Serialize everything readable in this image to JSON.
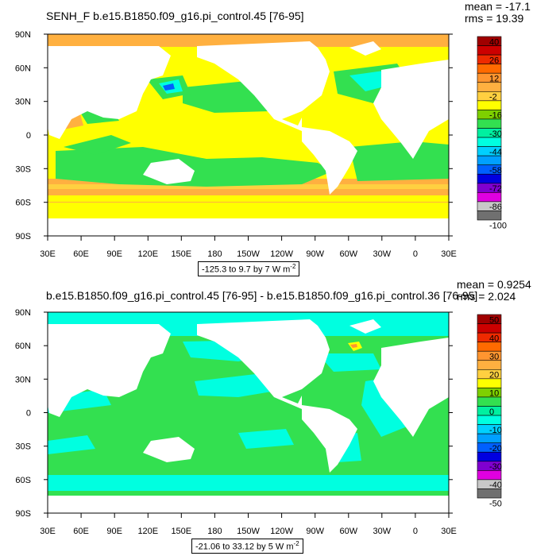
{
  "top": {
    "title": "SENH_F b.e15.B1850.f09_g16.pi_control.45 [76-95]",
    "mean": "mean = -17.1",
    "rms": "rms = 19.39",
    "range_text": "-125.3 to 9.7 by 7",
    "range_unit": "W m",
    "range_exp": "-2",
    "colorbar_labels": [
      "40",
      "26",
      "12",
      "-2",
      "-16",
      "-30",
      "-44",
      "-58",
      "-72",
      "-86",
      "-100"
    ]
  },
  "bottom": {
    "title": "b.e15.B1850.f09_g16.pi_control.45 [76-95] - b.e15.B1850.f09_g16.pi_control.36 [76-95]",
    "mean": "mean = 0.9254",
    "rms": "rms = 2.024",
    "range_text": "-21.06 to 33.12 by 5",
    "range_unit": "W m",
    "range_exp": "-2",
    "colorbar_labels": [
      "50",
      "40",
      "30",
      "20",
      "10",
      "0",
      "-10",
      "-20",
      "-30",
      "-40",
      "-50"
    ]
  },
  "axes": {
    "lat_labels": [
      "90N",
      "60N",
      "30N",
      "0",
      "30S",
      "60S",
      "90S"
    ],
    "lon_labels": [
      "30E",
      "60E",
      "90E",
      "120E",
      "150E",
      "180",
      "150W",
      "120W",
      "90W",
      "60W",
      "30W",
      "0",
      "30E"
    ]
  },
  "colors": {
    "top_colorbar": [
      "#a00000",
      "#cc0000",
      "#ee2a00",
      "#ff6a00",
      "#ff9530",
      "#ffb040",
      "#ffd040",
      "#ffff00",
      "#7ed000",
      "#33e050",
      "#00f0a0",
      "#00ffe0",
      "#00d0ff",
      "#00a0ff",
      "#0060ff",
      "#0000e0",
      "#8000d0",
      "#e000e0",
      "#c8c8c8",
      "#707070"
    ],
    "bottom_colorbar": [
      "#a00000",
      "#cc0000",
      "#ee2a00",
      "#ff6a00",
      "#ff9530",
      "#ffb040",
      "#ffd040",
      "#ffff00",
      "#7ed000",
      "#33e050",
      "#00f0a0",
      "#00ffe0",
      "#00d0ff",
      "#00a0ff",
      "#0060ff",
      "#0000e0",
      "#8000d0",
      "#e000e0",
      "#c8c8c8",
      "#707070"
    ],
    "top_field": {
      "orange": "#ffb040",
      "light_orange": "#ffd040",
      "yellow": "#ffff00",
      "green": "#33e050",
      "cyan": "#00f0a0",
      "aqua": "#00ffe0",
      "blue": "#0060ff"
    },
    "bottom_field": {
      "green": "#33e050",
      "cyan": "#00f0a0",
      "aqua": "#00ffe0",
      "yellow": "#ffff00",
      "orange": "#ff9530"
    }
  }
}
